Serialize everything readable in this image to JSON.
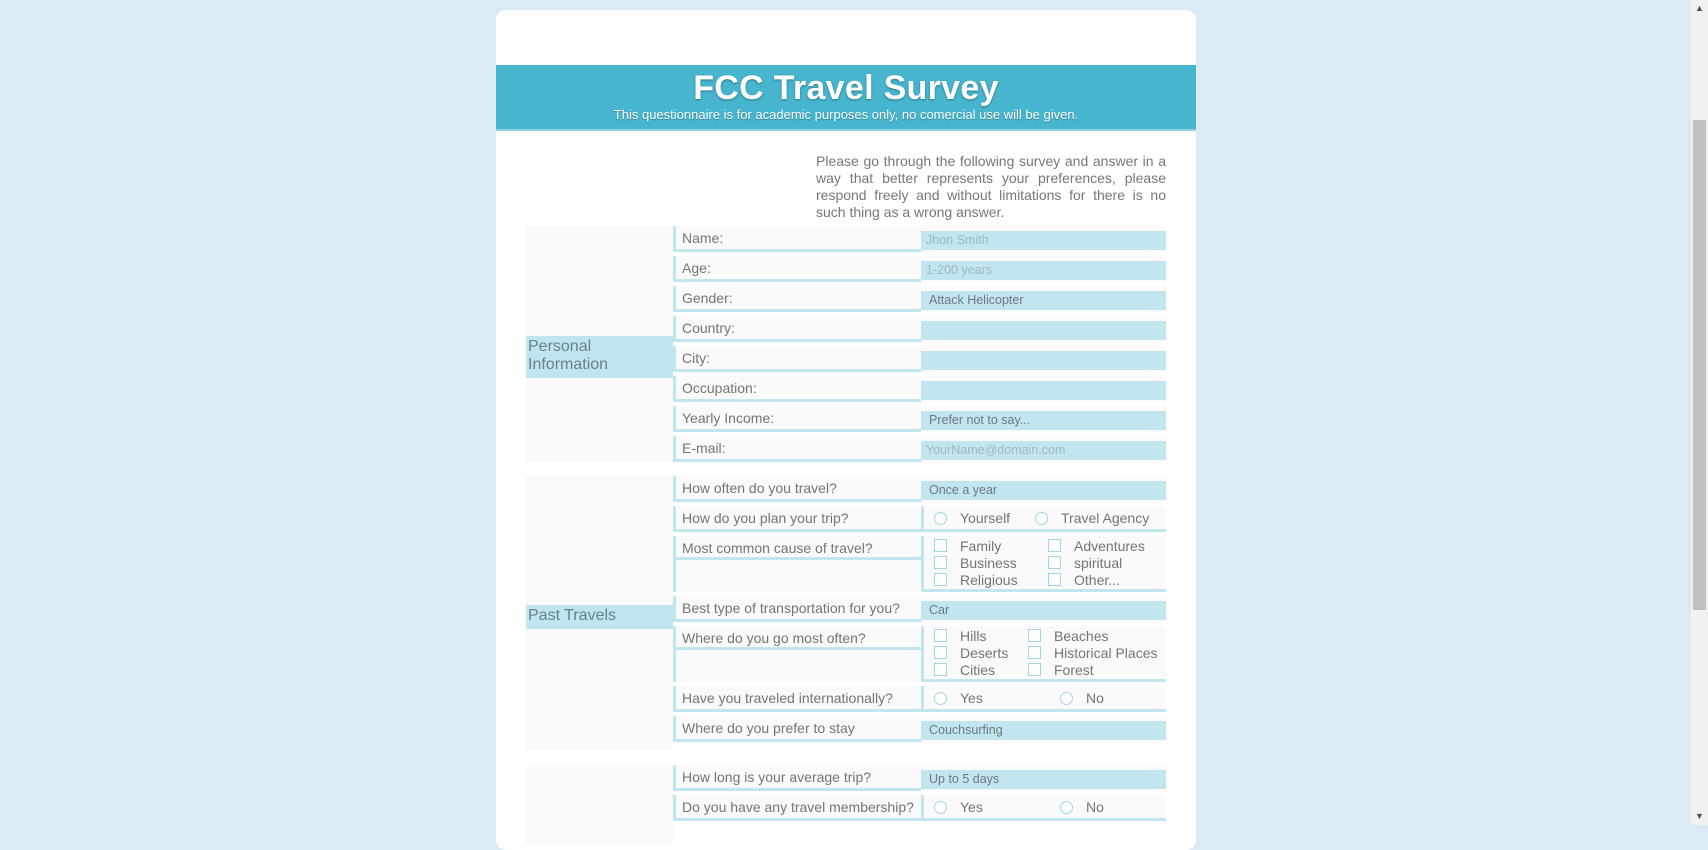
{
  "header": {
    "title": "FCC Travel Survey",
    "subtitle": "This questionnaire is for academic purposes only, no comercial use will be given."
  },
  "intro": "Please go through the following survey and answer in a way that better represents your preferences, please respond freely and without limitations for there is no such thing as a wrong answer.",
  "personal": {
    "label": "Personal Information",
    "name": {
      "question": "Name:",
      "placeholder": "Jhon Smith"
    },
    "age": {
      "question": "Age:",
      "placeholder": "1-200 years"
    },
    "gender": {
      "question": "Gender:",
      "value": "Attack Helicopter"
    },
    "country": {
      "question": "Country:",
      "value": ""
    },
    "city": {
      "question": "City:",
      "value": ""
    },
    "occupation": {
      "question": "Occupation:",
      "value": ""
    },
    "income": {
      "question": "Yearly Income:",
      "value": "Prefer not to say..."
    },
    "email": {
      "question": "E-mail:",
      "placeholder": "YourName@domain.com"
    }
  },
  "past": {
    "label": "Past Travels",
    "frequency": {
      "question": "How often do you travel?",
      "value": "Once a year"
    },
    "plan": {
      "question": "How do you plan your trip?",
      "options": [
        "Yourself",
        "Travel Agency"
      ]
    },
    "cause": {
      "question": "Most common cause of travel?",
      "options": [
        "Family",
        "Adventures",
        "Business",
        "spiritual",
        "Religious",
        "Other..."
      ]
    },
    "transport": {
      "question": "Best type of transportation for you?",
      "value": "Car"
    },
    "destination": {
      "question": "Where do you go most often?",
      "options": [
        "Hills",
        "Beaches",
        "Deserts",
        "Historical Places",
        "Cities",
        "Forest"
      ]
    },
    "international": {
      "question": "Have you traveled internationally?",
      "options": [
        "Yes",
        "No"
      ]
    },
    "stay": {
      "question": "Where do you prefer to stay",
      "value": "Couchsurfing"
    }
  },
  "third": {
    "trip_length": {
      "question": "How long is your average trip?",
      "value": "Up to 5 days"
    },
    "membership": {
      "question": "Do you have any travel membership?",
      "options": [
        "Yes",
        "No"
      ]
    }
  },
  "scrollbar": {
    "up_icon": "chevron-up-icon",
    "down_icon": "chevron-down-icon"
  }
}
